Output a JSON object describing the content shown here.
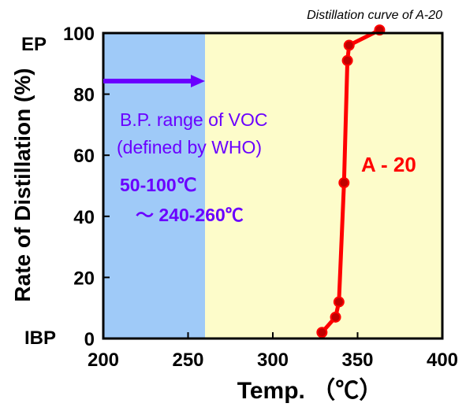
{
  "chart_data": {
    "type": "line",
    "title": "Distillation curve of A-20",
    "xlabel": "Temp. （℃）",
    "ylabel": "Rate of Distillation (%)",
    "xlim": [
      200,
      400
    ],
    "ylim": [
      0,
      100
    ],
    "x_ticks": [
      "200",
      "250",
      "300",
      "350",
      "400"
    ],
    "y_ticks": [
      "0",
      "20",
      "40",
      "60",
      "80",
      "100"
    ],
    "y_tick_extra_labels": {
      "initial": "IBP",
      "end": "EP"
    },
    "series": [
      {
        "name": "A - 20",
        "color": "#ff0000",
        "x": [
          329,
          337,
          339,
          342,
          344,
          345,
          363
        ],
        "y": [
          2,
          7,
          12,
          51,
          91,
          96,
          101
        ]
      }
    ],
    "regions": [
      {
        "x_range": [
          200,
          260
        ],
        "color": "#9fcaf8"
      },
      {
        "x_range": [
          260,
          400
        ],
        "color": "#fdfcca"
      }
    ],
    "annotations": {
      "voc_range": "B.P. range of   VOC",
      "voc_definition": "(defined by WHO)",
      "bp_low": "50-100℃",
      "bp_high": "～ 240-260℃",
      "arrow_color": "#6a00ff"
    },
    "grid": false
  }
}
